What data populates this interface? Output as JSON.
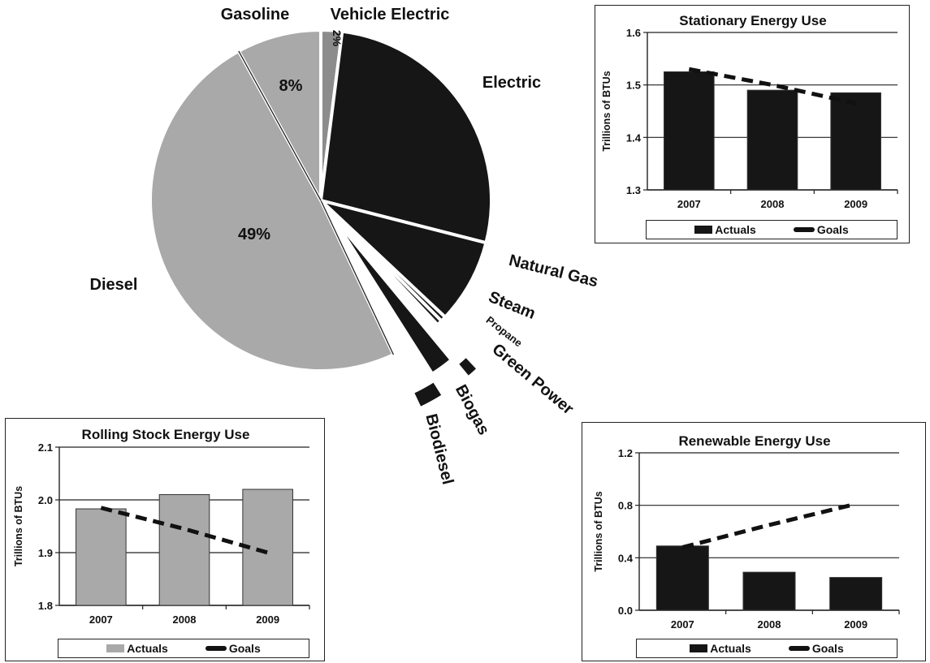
{
  "colors": {
    "light_gray": "#a9a9a9",
    "mid_gray": "#8c8c8c",
    "dark_fill": "#161616",
    "ink": "#111111"
  },
  "chart_data": [
    {
      "type": "pie",
      "slices": [
        {
          "label": "Vehicle Electric",
          "value": 2,
          "value_label": "2%"
        },
        {
          "label": "Electric",
          "value": 27,
          "value_label": ""
        },
        {
          "label": "Natural Gas",
          "value": 8,
          "value_label": ""
        },
        {
          "label": "Steam",
          "value": 0.5,
          "value_label": ""
        },
        {
          "label": "Propane",
          "value": 0.5,
          "value_label": ""
        },
        {
          "label": "Green Power",
          "value": 1,
          "value_label": ""
        },
        {
          "label": "Biogas",
          "value": 2,
          "value_label": ""
        },
        {
          "label": "Biodiesel",
          "value": 2,
          "value_label": ""
        },
        {
          "label": "Diesel",
          "value": 49,
          "value_label": "49%"
        },
        {
          "label": "Gasoline",
          "value": 8,
          "value_label": "8%"
        }
      ]
    },
    {
      "type": "bar",
      "title": "Stationary Energy Use",
      "ylabel": "Trillions of BTUs",
      "categories": [
        "2007",
        "2008",
        "2009"
      ],
      "ylim": [
        1.3,
        1.6
      ],
      "yticks": [
        "1.3",
        "1.4",
        "1.5",
        "1.6"
      ],
      "grid": true,
      "series": [
        {
          "name": "Actuals",
          "values": [
            1.525,
            1.49,
            1.485
          ]
        },
        {
          "name": "Goals",
          "values": [
            1.53,
            1.5,
            1.465
          ]
        }
      ],
      "legend": [
        "Actuals",
        "Goals"
      ]
    },
    {
      "type": "bar",
      "title": "Rolling Stock Energy Use",
      "ylabel": "Trillions of BTUs",
      "categories": [
        "2007",
        "2008",
        "2009"
      ],
      "ylim": [
        1.8,
        2.1
      ],
      "yticks": [
        "1.8",
        "1.9",
        "2.0",
        "2.1"
      ],
      "grid": true,
      "series": [
        {
          "name": "Actuals",
          "values": [
            1.983,
            2.01,
            2.02
          ]
        },
        {
          "name": "Goals",
          "values": [
            1.985,
            1.945,
            1.9
          ]
        }
      ],
      "legend": [
        "Actuals",
        "Goals"
      ]
    },
    {
      "type": "bar",
      "title": "Renewable Energy Use",
      "ylabel": "Trillions of BTUs",
      "categories": [
        "2007",
        "2008",
        "2009"
      ],
      "ylim": [
        0.0,
        1.2
      ],
      "yticks": [
        "0.0",
        "0.4",
        "0.8",
        "1.2"
      ],
      "grid": true,
      "series": [
        {
          "name": "Actuals",
          "values": [
            0.49,
            0.29,
            0.25
          ]
        },
        {
          "name": "Goals",
          "values": [
            0.48,
            0.65,
            0.81
          ]
        }
      ],
      "legend": [
        "Actuals",
        "Goals"
      ]
    }
  ]
}
